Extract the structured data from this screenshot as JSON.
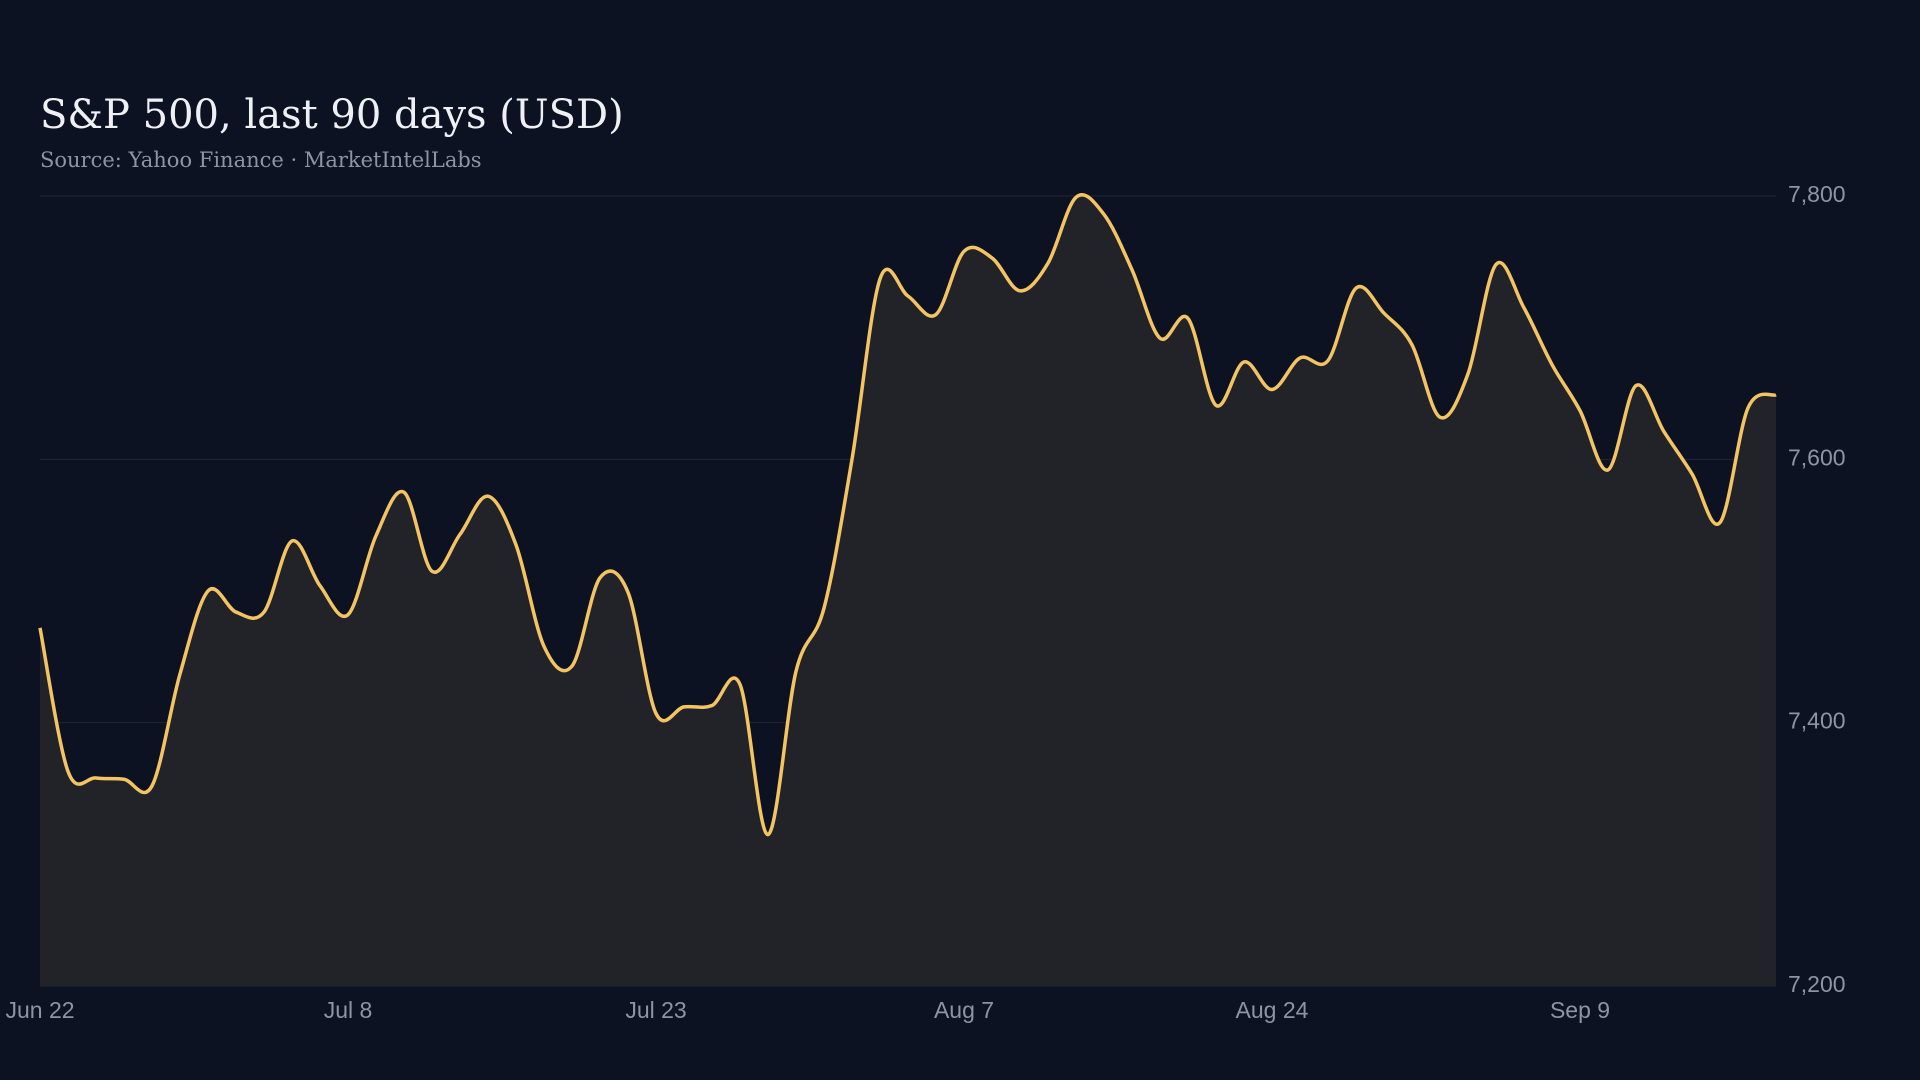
{
  "chart_data": {
    "type": "area",
    "title": "S&P 500, last 90 days (USD)",
    "subtitle": "Source: Yahoo Finance · MarketIntelLabs",
    "x": [
      "Jun 22",
      null,
      null,
      null,
      null,
      null,
      null,
      null,
      null,
      null,
      null,
      "Jul 8",
      null,
      null,
      null,
      null,
      null,
      null,
      null,
      null,
      null,
      null,
      "Jul 23",
      null,
      null,
      null,
      null,
      null,
      null,
      null,
      null,
      null,
      null,
      "Aug 7",
      null,
      null,
      null,
      null,
      null,
      null,
      null,
      null,
      null,
      null,
      "Aug 24",
      null,
      null,
      null,
      null,
      null,
      null,
      null,
      null,
      null,
      null,
      "Sep 9",
      null,
      null,
      null,
      null,
      null,
      null,
      null
    ],
    "series": [
      {
        "name": "S&P 500",
        "color": "#f3c461",
        "fill": "#212328",
        "values": [
          7472,
          7363,
          7358,
          7357,
          7352,
          7437,
          7500,
          7484,
          7484,
          7538,
          7504,
          7482,
          7542,
          7575,
          7515,
          7543,
          7572,
          7535,
          7458,
          7443,
          7510,
          7499,
          7407,
          7412,
          7413,
          7429,
          7315,
          7439,
          7487,
          7600,
          7737,
          7724,
          7710,
          7758,
          7753,
          7728,
          7749,
          7799,
          7786,
          7744,
          7692,
          7707,
          7641,
          7674,
          7653,
          7677,
          7675,
          7730,
          7711,
          7687,
          7632,
          7665,
          7748,
          7715,
          7672,
          7637,
          7592,
          7656,
          7621,
          7589,
          7552,
          7639,
          7649
        ]
      }
    ],
    "ylim": [
      7200,
      7800
    ],
    "yticks": [
      {
        "value": 7200,
        "label": "7,200"
      },
      {
        "value": 7400,
        "label": "7,400"
      },
      {
        "value": 7600,
        "label": "7,600"
      },
      {
        "value": 7800,
        "label": "7,800"
      }
    ],
    "grid": true,
    "y_axis_side": "right"
  }
}
